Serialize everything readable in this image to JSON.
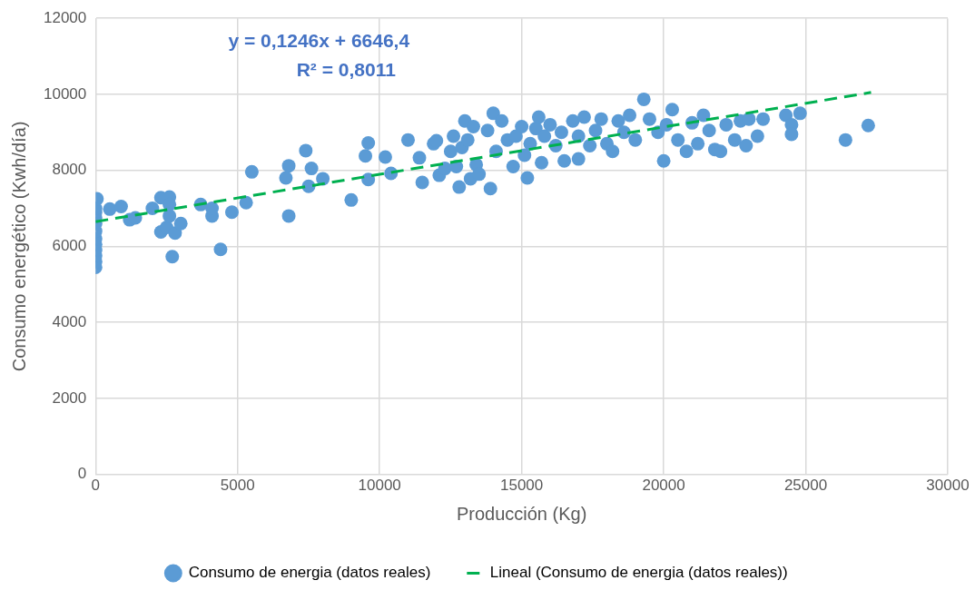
{
  "chart_data": {
    "type": "scatter",
    "xlabel": "Producción (Kg)",
    "ylabel": "Consumo energético (Kwh/día)",
    "xlim": [
      0,
      30000
    ],
    "xticks": [
      0,
      5000,
      10000,
      15000,
      20000,
      25000,
      30000
    ],
    "ylim": [
      0,
      12000
    ],
    "yticks": [
      0,
      2000,
      4000,
      6000,
      8000,
      10000,
      12000
    ],
    "grid": true,
    "legend": "bottom",
    "marker": "circle",
    "annotations": [
      "y = 0,1246x + 6646,4",
      "R² = 0,8011"
    ],
    "series": [
      {
        "name": "Consumo de energia (datos reales)",
        "color": "#5b9bd5",
        "x": [
          0,
          0,
          0,
          0,
          0,
          0,
          0,
          0,
          0,
          0,
          0,
          50,
          500,
          900,
          1200,
          1400,
          2000,
          2300,
          2300,
          2500,
          2600,
          2600,
          2700,
          2800,
          2600,
          3000,
          3700,
          4100,
          4100,
          4400,
          4800,
          5300,
          5500,
          6700,
          6800,
          6800,
          7400,
          7500,
          7600,
          8000,
          9000,
          9500,
          9600,
          9600,
          10200,
          10400,
          11000,
          11400,
          11500,
          11900,
          12000,
          12100,
          12300,
          12500,
          12600,
          12700,
          12800,
          12900,
          13000,
          13100,
          13200,
          13300,
          13400,
          13500,
          13800,
          13900,
          14000,
          14100,
          14300,
          14500,
          14700,
          14800,
          15000,
          15100,
          15200,
          15300,
          15500,
          15600,
          15700,
          15800,
          16000,
          16200,
          16400,
          16500,
          16800,
          17000,
          17000,
          17200,
          17400,
          17600,
          17800,
          18000,
          18200,
          18400,
          18600,
          18800,
          19000,
          19300,
          19500,
          19800,
          20000,
          20100,
          20300,
          20500,
          20800,
          21000,
          21200,
          21400,
          21600,
          21800,
          22000,
          22200,
          22500,
          22700,
          22900,
          23000,
          23300,
          23500,
          24300,
          24500,
          24500,
          24800,
          26400,
          27200
        ],
        "values": [
          5450,
          5600,
          5750,
          5900,
          6050,
          6200,
          6400,
          6600,
          6750,
          6900,
          7000,
          7250,
          6980,
          7050,
          6700,
          6750,
          7000,
          7280,
          6380,
          6500,
          7300,
          7100,
          5730,
          6350,
          6800,
          6600,
          7100,
          6800,
          7000,
          5920,
          6900,
          7150,
          7960,
          7800,
          8120,
          6800,
          8520,
          7580,
          8050,
          7780,
          7220,
          8380,
          8720,
          7760,
          8350,
          7920,
          8800,
          8330,
          7680,
          8700,
          8780,
          7870,
          8050,
          8500,
          8900,
          8100,
          7560,
          8600,
          9300,
          8800,
          7780,
          9150,
          8150,
          7900,
          9050,
          7520,
          9500,
          8500,
          9300,
          8800,
          8100,
          8900,
          9150,
          8400,
          7800,
          8700,
          9100,
          9400,
          8200,
          8900,
          9200,
          8650,
          9000,
          8250,
          9300,
          8300,
          8900,
          9400,
          8650,
          9050,
          9350,
          8700,
          8500,
          9300,
          9000,
          9450,
          8800,
          9870,
          9350,
          9000,
          8250,
          9200,
          9600,
          8800,
          8500,
          9250,
          8700,
          9450,
          9050,
          8550,
          8500,
          9200,
          8800,
          9300,
          8650,
          9350,
          8900,
          9350,
          9450,
          9200,
          8950,
          9500,
          8800,
          9180
        ]
      },
      {
        "name": "Lineal (Consumo de energia (datos reales))",
        "type": "line",
        "color": "#00b050",
        "line_style": "dashed",
        "marker": "none",
        "x": [
          0,
          27300
        ],
        "values": [
          6650,
          10050
        ]
      }
    ]
  }
}
